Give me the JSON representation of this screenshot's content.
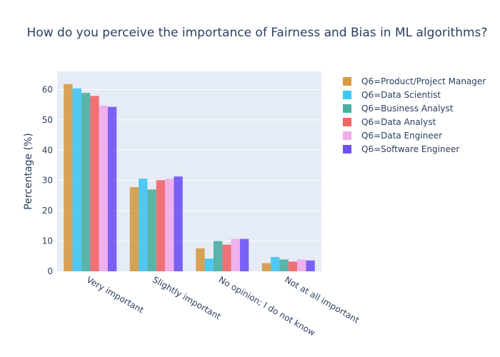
{
  "chart_data": {
    "type": "bar",
    "title": "How do you perceive the importance of Fairness and Bias in ML algorithms?",
    "xlabel": "",
    "ylabel": "Percentage (%)",
    "ylim": [
      0,
      66
    ],
    "yticks": [
      0,
      10,
      20,
      30,
      40,
      50,
      60
    ],
    "grid": true,
    "legend_position": "right",
    "categories": [
      "Very important",
      "Slightly important",
      "No opinion; I do not know",
      "Not at all important"
    ],
    "series": [
      {
        "name": "Q6=Product/Project Manager",
        "color": "#d38a1f",
        "values": [
          61.8,
          27.8,
          7.6,
          2.7
        ]
      },
      {
        "name": "Q6=Data Scientist",
        "color": "#1cbcf2",
        "values": [
          60.4,
          30.6,
          4.2,
          4.7
        ]
      },
      {
        "name": "Q6=Business Analyst",
        "color": "#2aa28f",
        "values": [
          58.9,
          27.0,
          10.0,
          3.9
        ]
      },
      {
        "name": "Q6=Data Analyst",
        "color": "#f04a4a",
        "values": [
          57.9,
          30.1,
          8.8,
          3.2
        ]
      },
      {
        "name": "Q6=Data Engineer",
        "color": "#f39ce8",
        "values": [
          54.7,
          30.5,
          10.7,
          3.9
        ]
      },
      {
        "name": "Q6=Software Engineer",
        "color": "#5631f5",
        "values": [
          54.3,
          31.3,
          10.7,
          3.6
        ]
      }
    ]
  }
}
